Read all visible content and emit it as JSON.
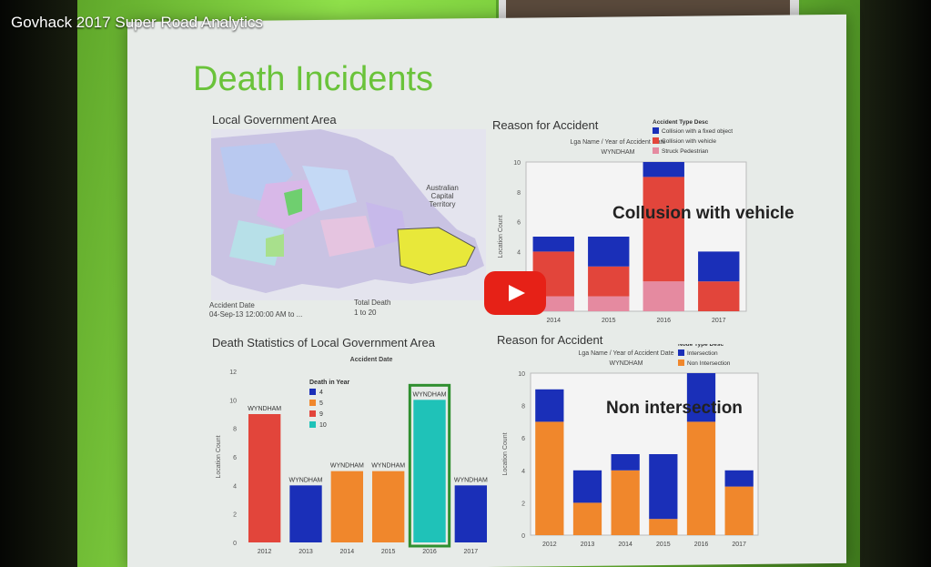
{
  "video": {
    "title": "Govhack 2017 Super Road Analytics"
  },
  "slide": {
    "title": "Death Incidents",
    "map_panel": {
      "label": "Local Government Area",
      "map_text": "Australian Capital Territory",
      "accident_date_label": "Accident Date",
      "accident_date_value": "04-Sep-13 12:00:00 AM to ...",
      "total_death_label": "Total Death",
      "total_death_value": "1 to 20"
    },
    "overlay_labels": {
      "collusion": "Collusion with vehicle",
      "non_intersection": "Non intersection"
    }
  },
  "chart_data": [
    {
      "type": "bar",
      "title": "Reason for Accident",
      "subtitle": "Lga Name / Year of Accident Date",
      "group_label": "WYNDHAM",
      "ylabel": "Location Count",
      "ylim": [
        0,
        10
      ],
      "yticks": [
        2,
        4,
        6,
        8,
        10
      ],
      "legend_title": "Accident Type Desc",
      "categories": [
        "2014",
        "2015",
        "2016",
        "2017"
      ],
      "series": [
        {
          "name": "Struck Pedestrian",
          "values": [
            1,
            1,
            2,
            0
          ],
          "color": "#e58aa0"
        },
        {
          "name": "Collision with vehicle",
          "values": [
            3,
            2,
            7,
            2
          ],
          "color": "#e2453b"
        },
        {
          "name": "Collision with a fixed object",
          "values": [
            1,
            2,
            1,
            2
          ],
          "color": "#1a2fb8"
        }
      ]
    },
    {
      "type": "bar",
      "title": "Death Statistics of Local Government Area",
      "subtitle": "Accident Date",
      "ylabel": "Location Count",
      "ylim": [
        0,
        12
      ],
      "yticks": [
        0,
        2,
        4,
        6,
        8,
        10,
        12
      ],
      "legend_title": "Death in Year",
      "legend": [
        {
          "name": "4",
          "color": "#1a2fb8"
        },
        {
          "name": "5",
          "color": "#f0872c"
        },
        {
          "name": "9",
          "color": "#e2453b"
        },
        {
          "name": "10",
          "color": "#1fc2b8"
        }
      ],
      "categories": [
        "2012",
        "2013",
        "2014",
        "2015",
        "2016",
        "2017"
      ],
      "bar_labels": [
        "WYNDHAM",
        "WYNDHAM",
        "WYNDHAM",
        "WYNDHAM",
        "WYNDHAM",
        "WYNDHAM"
      ],
      "values": [
        9,
        4,
        5,
        5,
        10,
        4
      ],
      "colors": [
        "#e2453b",
        "#1a2fb8",
        "#f0872c",
        "#f0872c",
        "#1fc2b8",
        "#1a2fb8"
      ]
    },
    {
      "type": "bar",
      "title": "Reason for Accident",
      "subtitle": "Lga Name / Year of Accident Date",
      "group_label": "WYNDHAM",
      "ylabel": "Location Count",
      "ylim": [
        0,
        10
      ],
      "yticks": [
        0,
        2,
        4,
        6,
        8,
        10
      ],
      "legend_title": "Node Type Desc",
      "categories": [
        "2012",
        "2013",
        "2014",
        "2015",
        "2016",
        "2017"
      ],
      "series": [
        {
          "name": "Non Intersection",
          "values": [
            7,
            2,
            4,
            1,
            7,
            3
          ],
          "color": "#f0872c"
        },
        {
          "name": "Intersection",
          "values": [
            2,
            2,
            1,
            4,
            3,
            1
          ],
          "color": "#1a2fb8"
        }
      ]
    }
  ]
}
